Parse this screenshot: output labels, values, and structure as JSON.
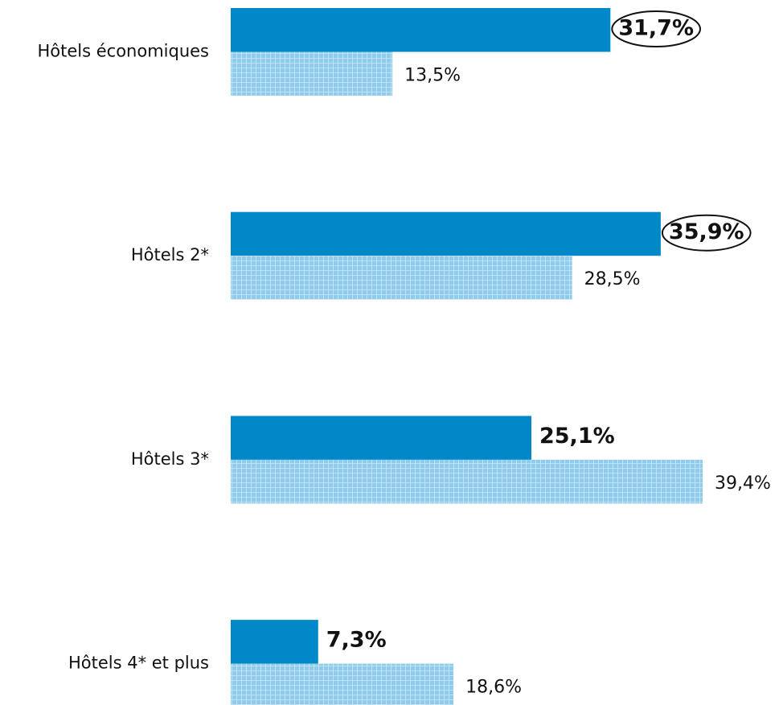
{
  "chart_data": {
    "type": "bar",
    "orientation": "horizontal",
    "categories": [
      "Hôtels économiques",
      "Hôtels 2*",
      "Hôtels 3*",
      "Hôtels 4* et plus"
    ],
    "series": [
      {
        "color": "#0088c8",
        "values": [
          31.7,
          35.9,
          25.1,
          7.3
        ],
        "value_labels": [
          "31,7%",
          "35,9%",
          "25,1%",
          "7,3%"
        ],
        "circled": [
          true,
          true,
          false,
          false
        ]
      },
      {
        "color": "#8ecbec",
        "pattern": "grid",
        "values": [
          13.5,
          28.5,
          39.4,
          18.6
        ],
        "value_labels": [
          "13,5%",
          "28,5%",
          "39,4%",
          "18,6%"
        ]
      }
    ]
  }
}
